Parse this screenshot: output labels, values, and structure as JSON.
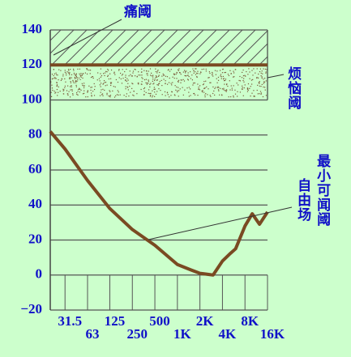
{
  "chart_data": {
    "type": "line",
    "x": [
      20,
      31.5,
      63,
      125,
      250,
      500,
      1000,
      1500,
      2000,
      3000,
      4000,
      5000,
      6000,
      8000,
      10000,
      12500,
      16000
    ],
    "series": [
      {
        "name": "最小可闻阈",
        "color": "#7a4a22",
        "values": [
          82,
          72,
          54,
          38,
          26,
          17,
          6,
          3,
          1,
          0,
          8,
          12,
          15,
          28,
          35,
          29,
          36
        ]
      }
    ],
    "annotation": "自由场",
    "bands": [
      {
        "name": "痛阈",
        "range": [
          120,
          140
        ],
        "pattern": "hatch"
      },
      {
        "name": "烦恼阈",
        "range": [
          100,
          120
        ],
        "pattern": "dots"
      }
    ],
    "xlim": [
      20,
      16000
    ],
    "xscale": "log",
    "xticks": [
      {
        "value": 31.5,
        "label": "31.5"
      },
      {
        "value": 63,
        "label": "63"
      },
      {
        "value": 125,
        "label": "125"
      },
      {
        "value": 250,
        "label": "250"
      },
      {
        "value": 500,
        "label": "500"
      },
      {
        "value": 1000,
        "label": "1K"
      },
      {
        "value": 2000,
        "label": "2K"
      },
      {
        "value": 4000,
        "label": "4K"
      },
      {
        "value": 8000,
        "label": "8K"
      },
      {
        "value": 16000,
        "label": "16K"
      }
    ],
    "ylim": [
      -20,
      140
    ],
    "yticks": [
      {
        "value": -20,
        "label": "−20"
      },
      0,
      20,
      40,
      60,
      80,
      100,
      120,
      140
    ],
    "grid": true
  }
}
